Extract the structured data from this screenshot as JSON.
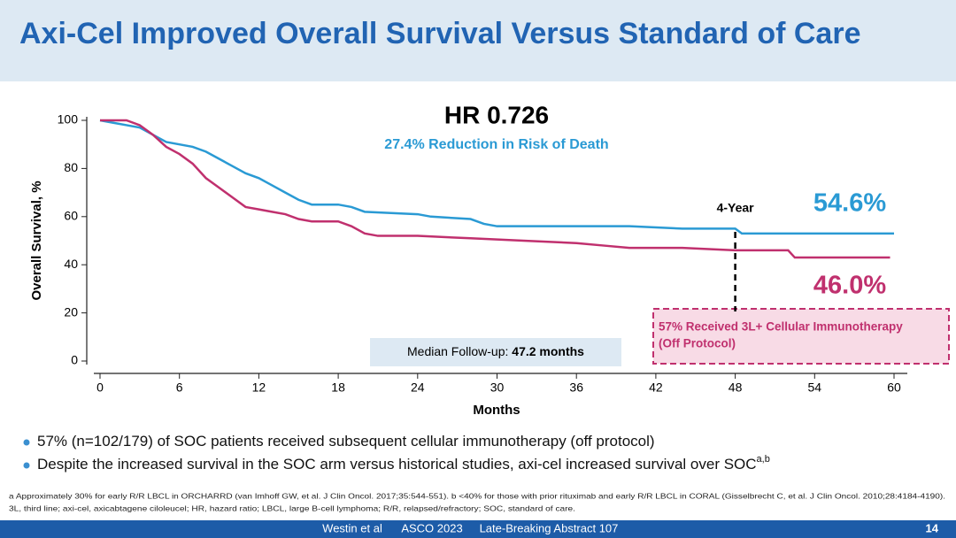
{
  "header": {
    "title": "Axi-Cel Improved Overall Survival Versus Standard of Care"
  },
  "chart_data": {
    "type": "line",
    "title": "HR 0.726",
    "subtitle": "27.4% Reduction in Risk of Death",
    "x_label": "Months",
    "y_label": "Overall Survival, %",
    "xlim": [
      0,
      60
    ],
    "ylim": [
      0,
      100
    ],
    "xticks": [
      0,
      6,
      12,
      18,
      24,
      30,
      36,
      42,
      48,
      54,
      60
    ],
    "yticks": [
      0,
      20,
      40,
      60,
      80,
      100
    ],
    "series": [
      {
        "color": "#2a9ad4",
        "x": [
          0,
          1,
          2,
          3,
          4,
          5,
          6,
          7,
          8,
          9,
          10,
          11,
          12,
          13,
          14,
          15,
          16,
          18,
          19,
          20,
          24,
          25,
          28,
          29,
          30,
          36,
          40,
          44,
          48,
          48.5,
          60
        ],
        "values": [
          100,
          99,
          98,
          97,
          94,
          91,
          90,
          89,
          87,
          84,
          81,
          78,
          76,
          73,
          70,
          67,
          65,
          65,
          64,
          62,
          61,
          60,
          59,
          57,
          56,
          56,
          56,
          55,
          55,
          53,
          53
        ]
      },
      {
        "color": "#c0306e",
        "x": [
          0,
          2,
          3,
          4,
          5,
          6,
          7,
          8,
          9,
          10,
          11,
          12,
          13,
          14,
          15,
          16,
          18,
          19,
          20,
          21,
          24,
          28,
          32,
          36,
          38,
          40,
          44,
          48,
          52,
          52.5,
          59.7
        ],
        "values": [
          100,
          100,
          98,
          94,
          89,
          86,
          82,
          76,
          72,
          68,
          64,
          63,
          62,
          61,
          59,
          58,
          58,
          56,
          53,
          52,
          52,
          51,
          50,
          49,
          48,
          47,
          47,
          46,
          46,
          43,
          43
        ]
      }
    ],
    "marker_x": 48,
    "marker_label": "4-Year",
    "end_labels": [
      "54.6%",
      "46.0%"
    ],
    "callout": [
      "57% Received 3L+ Cellular Immunotherapy",
      "(Off Protocol)"
    ],
    "median_followup": {
      "label": "Median Follow-up:",
      "value": "47.2 months"
    }
  },
  "bullets": [
    {
      "text": "57% (n=102/179) of SOC patients received subsequent cellular immunotherapy (off protocol)"
    },
    {
      "text": "Despite the increased survival in the SOC arm versus historical studies, axi-cel increased survival over SOC",
      "sup": "a,b"
    }
  ],
  "footnotes": [
    "a Approximately 30% for early R/R LBCL in ORCHARRD (van Imhoff GW, et al. J Clin Oncol. 2017;35:544-551). b <40% for those with prior rituximab and early R/R LBCL in CORAL (Gisselbrecht C, et al. J Clin Oncol. 2010;28:4184-4190).",
    "3L, third line; axi-cel, axicabtagene ciloleucel; HR, hazard ratio; LBCL, large B-cell lymphoma; R/R, relapsed/refractory; SOC, standard of care."
  ],
  "footer": {
    "items": [
      "Westin et al",
      "ASCO 2023",
      "Late-Breaking Abstract 107"
    ],
    "page": "14"
  }
}
